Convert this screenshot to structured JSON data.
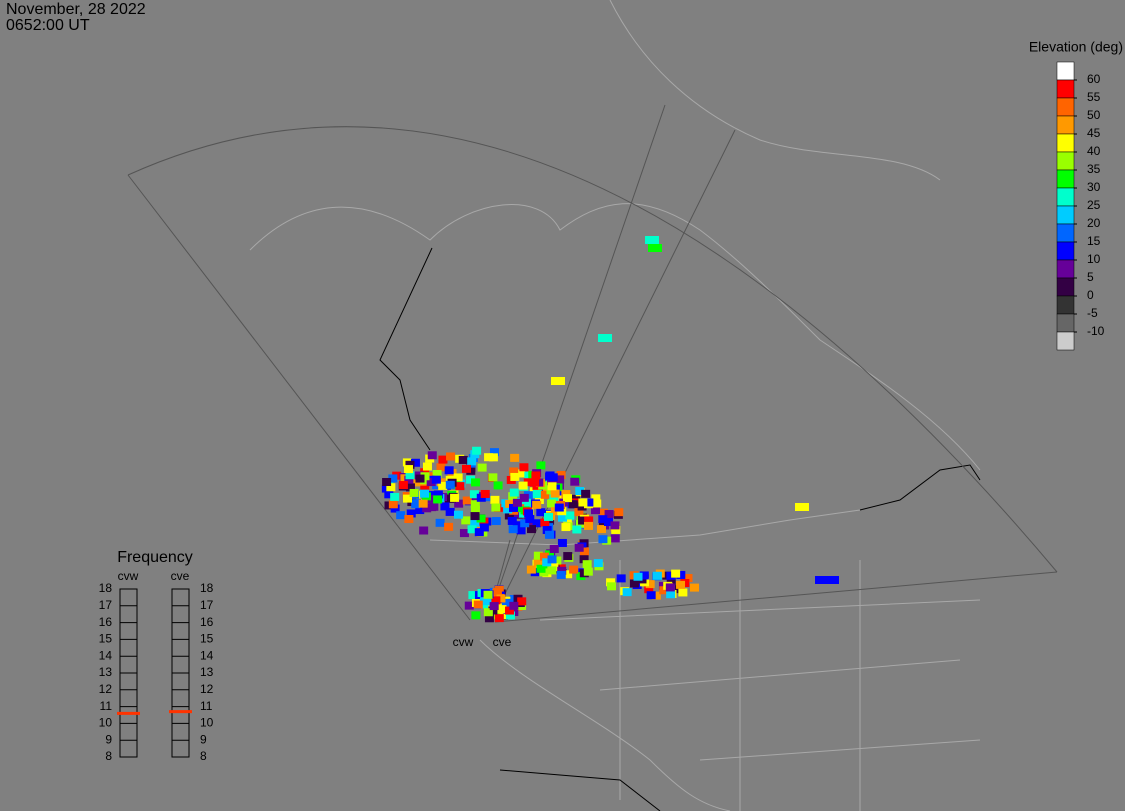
{
  "header": {
    "date": "November, 28 2022",
    "time": "0652:00 UT"
  },
  "colorbar": {
    "title": "Elevation (deg)",
    "levels": [
      60,
      55,
      50,
      45,
      40,
      35,
      30,
      25,
      20,
      15,
      10,
      5,
      0,
      -5,
      -10
    ],
    "colors": [
      "#ffffff",
      "#ff0000",
      "#ff6400",
      "#ff9900",
      "#ffff00",
      "#99ff00",
      "#00ff00",
      "#00ffcc",
      "#00ccff",
      "#0066ff",
      "#0000ff",
      "#660099",
      "#330044",
      "#333333",
      "#666666",
      "#cccccc"
    ]
  },
  "frequency": {
    "title": "Frequency",
    "ticks": [
      8,
      9,
      10,
      11,
      12,
      13,
      14,
      15,
      16,
      17,
      18
    ],
    "lim": [
      8,
      18
    ],
    "marker_color": "#ff3300",
    "radars": [
      {
        "name": "cvw",
        "value": 10.6
      },
      {
        "name": "cve",
        "value": 10.7
      }
    ]
  },
  "radar_labels": [
    "cvw",
    "cve"
  ]
}
